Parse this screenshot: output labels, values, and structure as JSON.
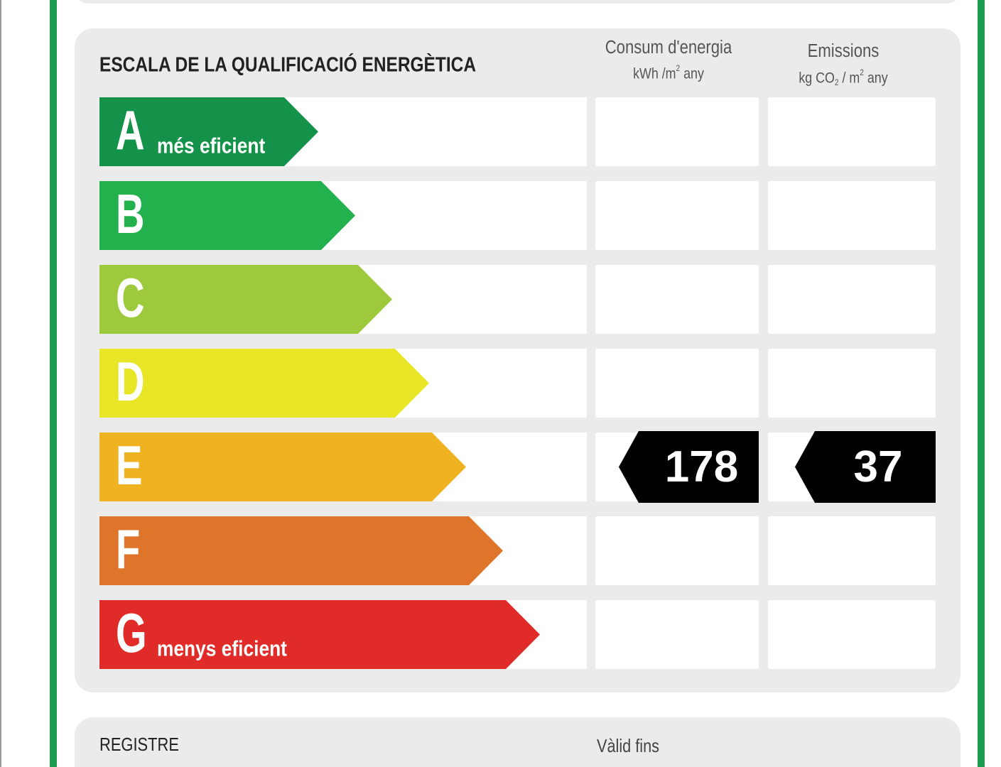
{
  "header": {
    "title": "ESCALA DE LA QUALIFICACIÓ ENERGÈTICA"
  },
  "columns": [
    {
      "title": "Consum d'energia",
      "unit_parts": [
        {
          "text": "kWh /m"
        },
        {
          "text": "2",
          "script": "sup"
        },
        {
          "text": " any"
        }
      ]
    },
    {
      "title": "Emissions",
      "unit_parts": [
        {
          "text": "kg CO"
        },
        {
          "text": "2",
          "script": "sub"
        },
        {
          "text": " / m"
        },
        {
          "text": "2",
          "script": "sup"
        },
        {
          "text": " any"
        }
      ]
    }
  ],
  "rows": [
    {
      "letter": "A",
      "label": "més eficient",
      "color": "#15924a"
    },
    {
      "letter": "B",
      "color": "#22b14c"
    },
    {
      "letter": "C",
      "color": "#9cca3c"
    },
    {
      "letter": "D",
      "color": "#e8e627"
    },
    {
      "letter": "E",
      "color": "#efb322",
      "energy": 178,
      "emissions": 37
    },
    {
      "letter": "F",
      "color": "#df742b"
    },
    {
      "letter": "G",
      "label": "menys eficient",
      "color": "#e02b28"
    }
  ],
  "footer": {
    "register": "REGISTRE",
    "valid_until": "Vàlid fins"
  }
}
